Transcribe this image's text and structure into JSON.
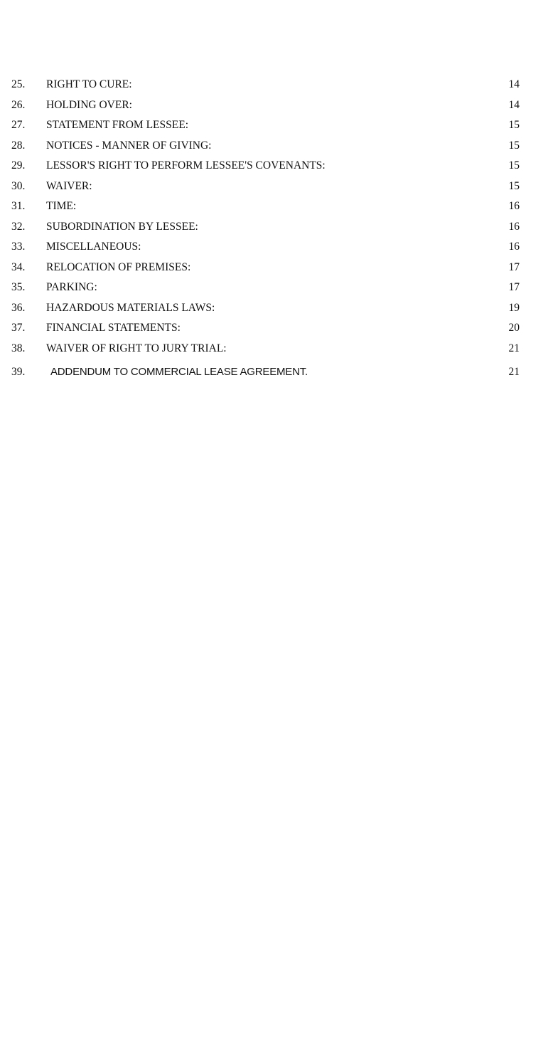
{
  "toc": [
    {
      "num": "25.",
      "title": "RIGHT TO CURE:",
      "page": "14"
    },
    {
      "num": "26.",
      "title": "HOLDING OVER:",
      "page": "14"
    },
    {
      "num": "27.",
      "title": "STATEMENT FROM LESSEE:",
      "page": "15"
    },
    {
      "num": "28.",
      "title": "NOTICES - MANNER OF GIVING:",
      "page": "15"
    },
    {
      "num": "29.",
      "title": "LESSOR'S RIGHT TO PERFORM LESSEE'S COVENANTS:",
      "page": "15"
    },
    {
      "num": "30.",
      "title": "WAIVER:",
      "page": "15"
    },
    {
      "num": "31.",
      "title": "TIME:",
      "page": "16"
    },
    {
      "num": "32.",
      "title": "SUBORDINATION BY LESSEE:",
      "page": "16"
    },
    {
      "num": "33.",
      "title": "MISCELLANEOUS:",
      "page": "16"
    },
    {
      "num": "34.",
      "title": "RELOCATION OF PREMISES:",
      "page": "17"
    },
    {
      "num": "35.",
      "title": "PARKING:",
      "page": "17"
    },
    {
      "num": "36.",
      "title": "HAZARDOUS MATERIALS LAWS:",
      "page": "19"
    },
    {
      "num": "37.",
      "title": "FINANCIAL STATEMENTS:",
      "page": "20"
    },
    {
      "num": "38.",
      "title": "WAIVER OF RIGHT TO JURY TRIAL:",
      "page": "21"
    },
    {
      "num": "39.",
      "title": "ADDENDUM TO COMMERCIAL LEASE AGREEMENT.",
      "page": "21"
    }
  ]
}
